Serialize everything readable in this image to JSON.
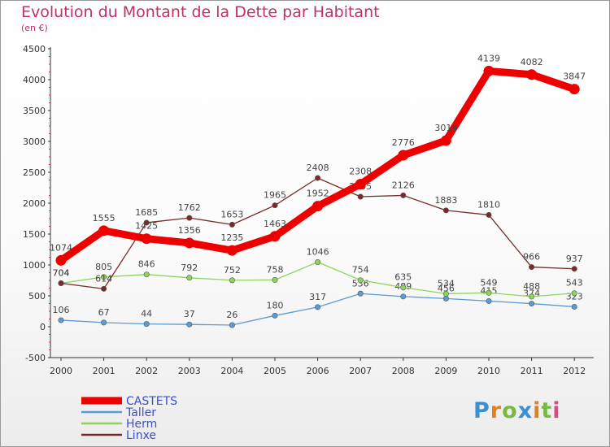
{
  "header": {
    "title": "Evolution du Montant de la Dette par Habitant",
    "subtitle": "(en €)"
  },
  "logo": {
    "text": "Proxiti"
  },
  "colors": {
    "title": "#c0306a",
    "axis": "#333333",
    "grid_tick": "#cc3355"
  },
  "chart_data": {
    "type": "line",
    "title": "Evolution du Montant de la Dette par Habitant",
    "subtitle": "(en €)",
    "xlabel": "",
    "ylabel": "",
    "ylim": [
      -500,
      4500
    ],
    "yticks": [
      -500,
      0,
      500,
      1000,
      1500,
      2000,
      2500,
      3000,
      3500,
      4000,
      4500
    ],
    "grid": false,
    "legend_position": "bottom-left",
    "x": [
      "2000",
      "2001",
      "2002",
      "2003",
      "2004",
      "2005",
      "2006",
      "2007",
      "2008",
      "2009",
      "2010",
      "2011",
      "2012"
    ],
    "series": [
      {
        "name": "CASTETS",
        "color": "#ee0000",
        "values": [
          1074,
          1555,
          1425,
          1356,
          1235,
          1463,
          1952,
          2308,
          2776,
          3014,
          4139,
          4082,
          3847
        ]
      },
      {
        "name": "Taller",
        "color": "#5b9bd5",
        "values": [
          106,
          67,
          44,
          37,
          26,
          180,
          317,
          536,
          489,
          456,
          415,
          374,
          323
        ]
      },
      {
        "name": "Herm",
        "color": "#8ed45c",
        "values": [
          704,
          805,
          846,
          792,
          752,
          758,
          1046,
          754,
          635,
          534,
          549,
          488,
          543
        ]
      },
      {
        "name": "Linxe",
        "color": "#7a2a2a",
        "values": [
          704,
          614,
          1685,
          1762,
          1653,
          1965,
          2408,
          2105,
          2126,
          1883,
          1810,
          966,
          937
        ]
      }
    ]
  }
}
